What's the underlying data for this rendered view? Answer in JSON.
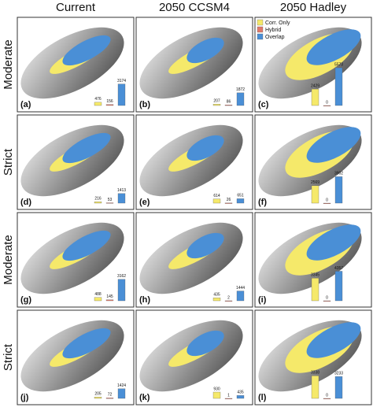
{
  "column_headers": [
    "Current",
    "2050 CCSM4",
    "2050 Hadley"
  ],
  "row_labels": [
    "Moderate",
    "Strict",
    "Moderate",
    "Strict"
  ],
  "legend": [
    {
      "label": "Corr. Only",
      "color": "#f5e96a"
    },
    {
      "label": "Hybrid",
      "color": "#e0796a"
    },
    {
      "label": "Overlap",
      "color": "#4a8fd6"
    }
  ],
  "panels": [
    {
      "label": "(a)",
      "values": [
        476,
        156,
        3174
      ]
    },
    {
      "label": "(b)",
      "values": [
        207,
        86,
        1872
      ]
    },
    {
      "label": "(c)",
      "values": [
        2429,
        0,
        5573
      ]
    },
    {
      "label": "(d)",
      "values": [
        216,
        53,
        1413
      ]
    },
    {
      "label": "(e)",
      "values": [
        614,
        26,
        651
      ]
    },
    {
      "label": "(f)",
      "values": [
        2569,
        0,
        3902
      ]
    },
    {
      "label": "(g)",
      "values": [
        488,
        145,
        3162
      ]
    },
    {
      "label": "(h)",
      "values": [
        435,
        2,
        1444
      ]
    },
    {
      "label": "(i)",
      "values": [
        3345,
        0,
        4357
      ]
    },
    {
      "label": "(j)",
      "values": [
        205,
        72,
        1424
      ]
    },
    {
      "label": "(k)",
      "values": [
        930,
        1,
        435
      ]
    },
    {
      "label": "(l)",
      "values": [
        3338,
        0,
        3233
      ]
    }
  ]
}
